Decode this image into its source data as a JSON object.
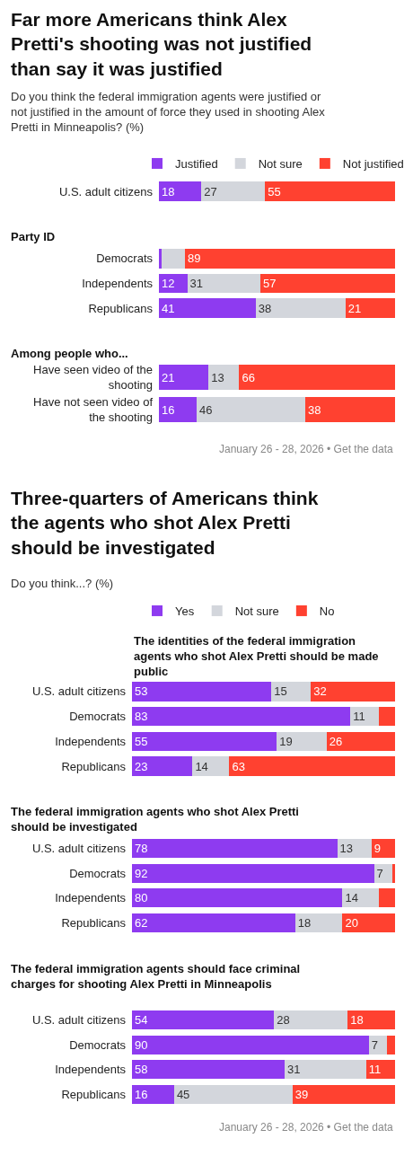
{
  "chart_data": [
    {
      "type": "bar",
      "title": "Far more Americans think Alex Pretti's shooting was not justified than say it was justified",
      "subtitle": "Do you think the federal immigration agents were justified or not justified in the amount of force they used in shooting Alex Pretti in Minneapolis? (%)",
      "orientation": "horizontal",
      "stacked": true,
      "legend": "top",
      "tick_labels": "y",
      "xlim": [
        0,
        100
      ],
      "categories": [
        "U.S. adult citizens"
      ],
      "series": [
        {
          "name": "Justified",
          "color": "#8e3bf0",
          "values": [
            18
          ],
          "value_labels": [
            "18"
          ]
        },
        {
          "name": "Not sure",
          "color": "#d3d6dc",
          "values": [
            27
          ],
          "value_labels": [
            "27"
          ]
        },
        {
          "name": "Not justified",
          "color": "#ff4130",
          "values": [
            55
          ],
          "value_labels": [
            "55"
          ]
        }
      ]
    },
    {
      "type": "bar",
      "title": "Party ID",
      "orientation": "horizontal",
      "stacked": true,
      "tick_labels": "y",
      "xlim": [
        0,
        100
      ],
      "categories": [
        "Democrats",
        "Independents",
        "Republicans"
      ],
      "series": [
        {
          "color": "#8e3bf0",
          "values": [
            1,
            12,
            41
          ],
          "value_labels": [
            null,
            "12",
            "41"
          ]
        },
        {
          "color": "#d3d6dc",
          "values": [
            10,
            31,
            38
          ],
          "value_labels": [
            null,
            "31",
            "38"
          ]
        },
        {
          "color": "#ff4130",
          "values": [
            89,
            57,
            21
          ],
          "value_labels": [
            "89",
            "57",
            "21"
          ]
        }
      ]
    },
    {
      "type": "bar",
      "title": "Among people who...",
      "orientation": "horizontal",
      "stacked": true,
      "tick_labels": "y",
      "xlim": [
        0,
        100
      ],
      "categories": [
        "Have seen video of the shooting",
        "Have not seen video of the shooting"
      ],
      "series": [
        {
          "color": "#8e3bf0",
          "values": [
            21,
            16
          ],
          "value_labels": [
            "21",
            "16"
          ]
        },
        {
          "color": "#d3d6dc",
          "values": [
            13,
            46
          ],
          "value_labels": [
            "13",
            "46"
          ]
        },
        {
          "color": "#ff4130",
          "values": [
            66,
            38
          ],
          "value_labels": [
            "66",
            "38"
          ]
        }
      ],
      "annotations": [
        "January 26 - 28, 2026 • Get the data"
      ]
    },
    {
      "type": "bar",
      "title": "Three-quarters of Americans think the agents who shot Alex Pretti should be investigated",
      "subtitle": "Do you think...? (%)",
      "orientation": "horizontal",
      "stacked": true,
      "legend": "top",
      "tick_labels": "y",
      "xlim": [
        0,
        100
      ],
      "categories": [
        "U.S. adult citizens",
        "Democrats",
        "Independents",
        "Republicans"
      ],
      "series": [
        {
          "name": "Yes",
          "color": "#8e3bf0",
          "values": [
            53,
            83,
            55,
            23
          ],
          "value_labels": [
            "53",
            "83",
            "55",
            "23"
          ]
        },
        {
          "name": "Not sure",
          "color": "#d3d6dc",
          "values": [
            15,
            11,
            19,
            14
          ],
          "value_labels": [
            "15",
            "11",
            "19",
            "14"
          ]
        },
        {
          "name": "No",
          "color": "#ff4130",
          "values": [
            32,
            6,
            26,
            63
          ],
          "value_labels": [
            "32",
            null,
            "26",
            "63"
          ]
        }
      ],
      "annotations": [
        "The identities of the federal immigration agents who shot Alex Pretti should be made public"
      ]
    },
    {
      "type": "bar",
      "title": "The federal immigration agents who shot Alex Pretti should be investigated",
      "orientation": "horizontal",
      "stacked": true,
      "tick_labels": "y",
      "xlim": [
        0,
        100
      ],
      "categories": [
        "U.S. adult citizens",
        "Democrats",
        "Independents",
        "Republicans"
      ],
      "series": [
        {
          "color": "#8e3bf0",
          "values": [
            78,
            92,
            80,
            62
          ],
          "value_labels": [
            "78",
            "92",
            "80",
            "62"
          ]
        },
        {
          "color": "#d3d6dc",
          "values": [
            13,
            7,
            14,
            18
          ],
          "value_labels": [
            "13",
            "7",
            "14",
            "18"
          ]
        },
        {
          "color": "#ff4130",
          "values": [
            9,
            1,
            6,
            20
          ],
          "value_labels": [
            "9",
            null,
            null,
            "20"
          ]
        }
      ]
    },
    {
      "type": "bar",
      "title": "The federal immigration agents should face criminal charges for shooting Alex Pretti in Minneapolis",
      "orientation": "horizontal",
      "stacked": true,
      "tick_labels": "y",
      "xlim": [
        0,
        100
      ],
      "categories": [
        "U.S. adult citizens",
        "Democrats",
        "Independents",
        "Republicans"
      ],
      "series": [
        {
          "color": "#8e3bf0",
          "values": [
            54,
            90,
            58,
            16
          ],
          "value_labels": [
            "54",
            "90",
            "58",
            "16"
          ]
        },
        {
          "color": "#d3d6dc",
          "values": [
            28,
            7,
            31,
            45
          ],
          "value_labels": [
            "28",
            "7",
            "31",
            "45"
          ]
        },
        {
          "color": "#ff4130",
          "values": [
            18,
            3,
            11,
            39
          ],
          "value_labels": [
            "18",
            null,
            "11",
            "39"
          ]
        }
      ],
      "annotations": [
        "January 26 - 28, 2026 • Get the data"
      ]
    }
  ]
}
